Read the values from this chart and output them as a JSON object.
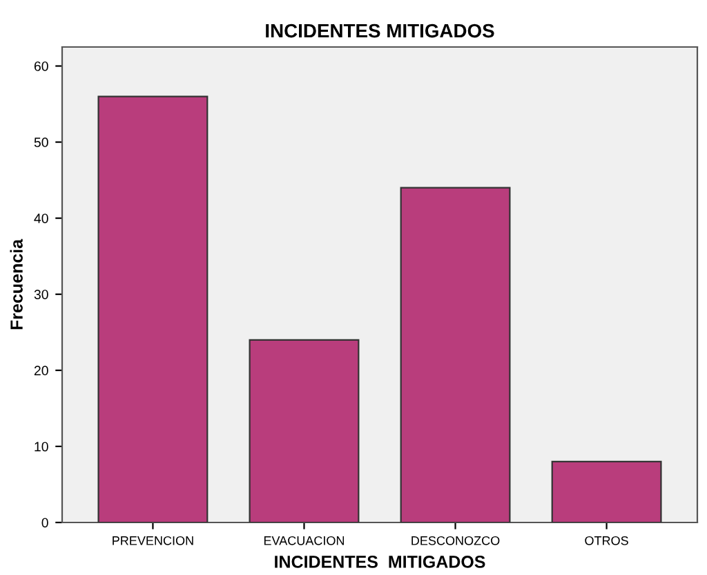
{
  "chart_data": {
    "type": "bar",
    "title": "INCIDENTES MITIGADOS",
    "xlabel": "INCIDENTES  MITIGADOS",
    "ylabel": "Frecuencia",
    "categories": [
      "PREVENCION",
      "EVACUACION",
      "DESCONOZCO",
      "OTROS"
    ],
    "values": [
      56,
      24,
      44,
      8
    ],
    "color": "#b93d7c",
    "ylim": [
      0,
      62.5
    ],
    "yticks": [
      0,
      10,
      20,
      30,
      40,
      50,
      60
    ],
    "grid": false
  }
}
